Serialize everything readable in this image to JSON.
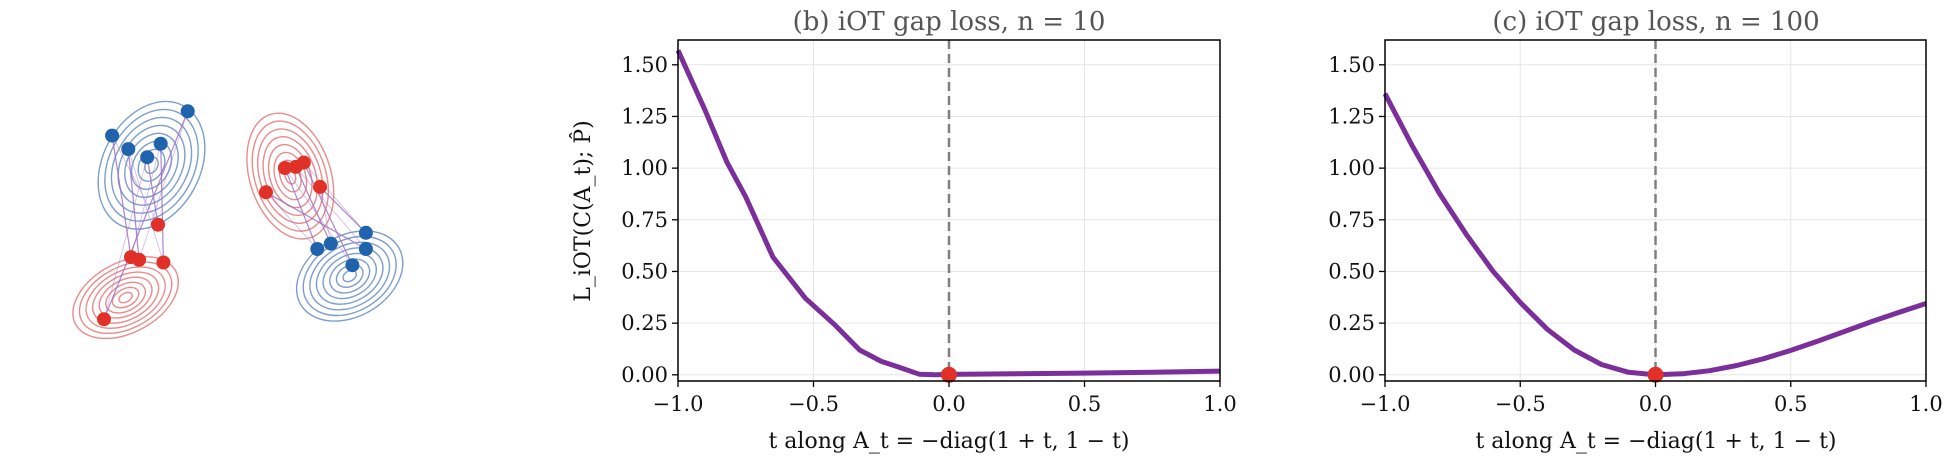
{
  "colors": {
    "curve": "#7B2F9B",
    "marker": "#E03028",
    "vline": "#808080",
    "blue_points": "#1F63AC",
    "red_points": "#E03028",
    "blue_contours": "#6F93C6",
    "red_contours": "#E87E7E",
    "links": "#A070C8"
  },
  "chart_data": [
    {
      "type": "scatter",
      "description_panel": "point clouds with gaussian contours and matching lines",
      "title": "",
      "xlabel": "",
      "ylabel": "",
      "axes_visible": false,
      "series": [
        {
          "color": "blue",
          "x": [
            -1.35,
            -1.05,
            -0.7,
            -0.45,
            0.05
          ],
          "y": [
            1.1,
            0.85,
            0.7,
            0.95,
            1.55
          ]
        },
        {
          "color": "red",
          "x": [
            -1.0,
            -0.85,
            -0.5,
            -0.4,
            -1.5
          ],
          "y": [
            -1.15,
            -1.2,
            -0.55,
            -1.25,
            -2.3
          ]
        },
        {
          "color": "red",
          "x": [
            1.85,
            2.05,
            2.2,
            1.5,
            2.5
          ],
          "y": [
            0.5,
            0.52,
            0.6,
            0.05,
            0.15
          ]
        },
        {
          "color": "blue",
          "x": [
            2.45,
            2.7,
            3.1,
            3.35,
            3.35
          ],
          "y": [
            -1.0,
            -0.9,
            -1.3,
            -1.0,
            -0.7
          ]
        }
      ]
    },
    {
      "type": "line",
      "title": "(b) iOT gap loss, n = 10",
      "xlabel": "t along A_t = −diag(1 + t, 1 − t)",
      "ylabel": "L_iOT(C(A_t); P̂)",
      "xlim": [
        -1.0,
        1.0
      ],
      "ylim": [
        -0.03,
        1.62
      ],
      "xticks": [
        "−1.0",
        "−0.5",
        "0.0",
        "0.5",
        "1.0"
      ],
      "yticks": [
        "0.00",
        "0.25",
        "0.50",
        "0.75",
        "1.00",
        "1.25",
        "1.50"
      ],
      "grid": true,
      "vline_x": 0.0,
      "marker": {
        "x": 0.0,
        "y": 0.0
      },
      "x": [
        -1.0,
        -0.9,
        -0.82,
        -0.75,
        -0.65,
        -0.53,
        -0.42,
        -0.33,
        -0.25,
        -0.18,
        -0.11,
        -0.05,
        0.0,
        0.25,
        0.5,
        0.75,
        1.0
      ],
      "y": [
        1.57,
        1.28,
        1.03,
        0.86,
        0.57,
        0.37,
        0.24,
        0.12,
        0.065,
        0.035,
        0.003,
        0.0,
        0.002,
        0.005,
        0.008,
        0.012,
        0.018
      ]
    },
    {
      "type": "line",
      "title": "(c) iOT gap loss, n = 100",
      "xlabel": "t along A_t = −diag(1 + t, 1 − t)",
      "ylabel": "",
      "xlim": [
        -1.0,
        1.0
      ],
      "ylim": [
        -0.03,
        1.62
      ],
      "xticks": [
        "−1.0",
        "−0.5",
        "0.0",
        "0.5",
        "1.0"
      ],
      "yticks": [
        "0.00",
        "0.25",
        "0.50",
        "0.75",
        "1.00",
        "1.25",
        "1.50"
      ],
      "grid": true,
      "vline_x": 0.0,
      "marker": {
        "x": 0.0,
        "y": 0.0
      },
      "x": [
        -1.0,
        -0.9,
        -0.8,
        -0.7,
        -0.6,
        -0.5,
        -0.4,
        -0.3,
        -0.2,
        -0.1,
        0.0,
        0.1,
        0.2,
        0.3,
        0.4,
        0.5,
        0.6,
        0.7,
        0.8,
        0.9,
        1.0
      ],
      "y": [
        1.36,
        1.11,
        0.88,
        0.68,
        0.5,
        0.35,
        0.22,
        0.12,
        0.05,
        0.012,
        0.0,
        0.005,
        0.02,
        0.045,
        0.078,
        0.118,
        0.163,
        0.21,
        0.258,
        0.302,
        0.345
      ]
    }
  ]
}
